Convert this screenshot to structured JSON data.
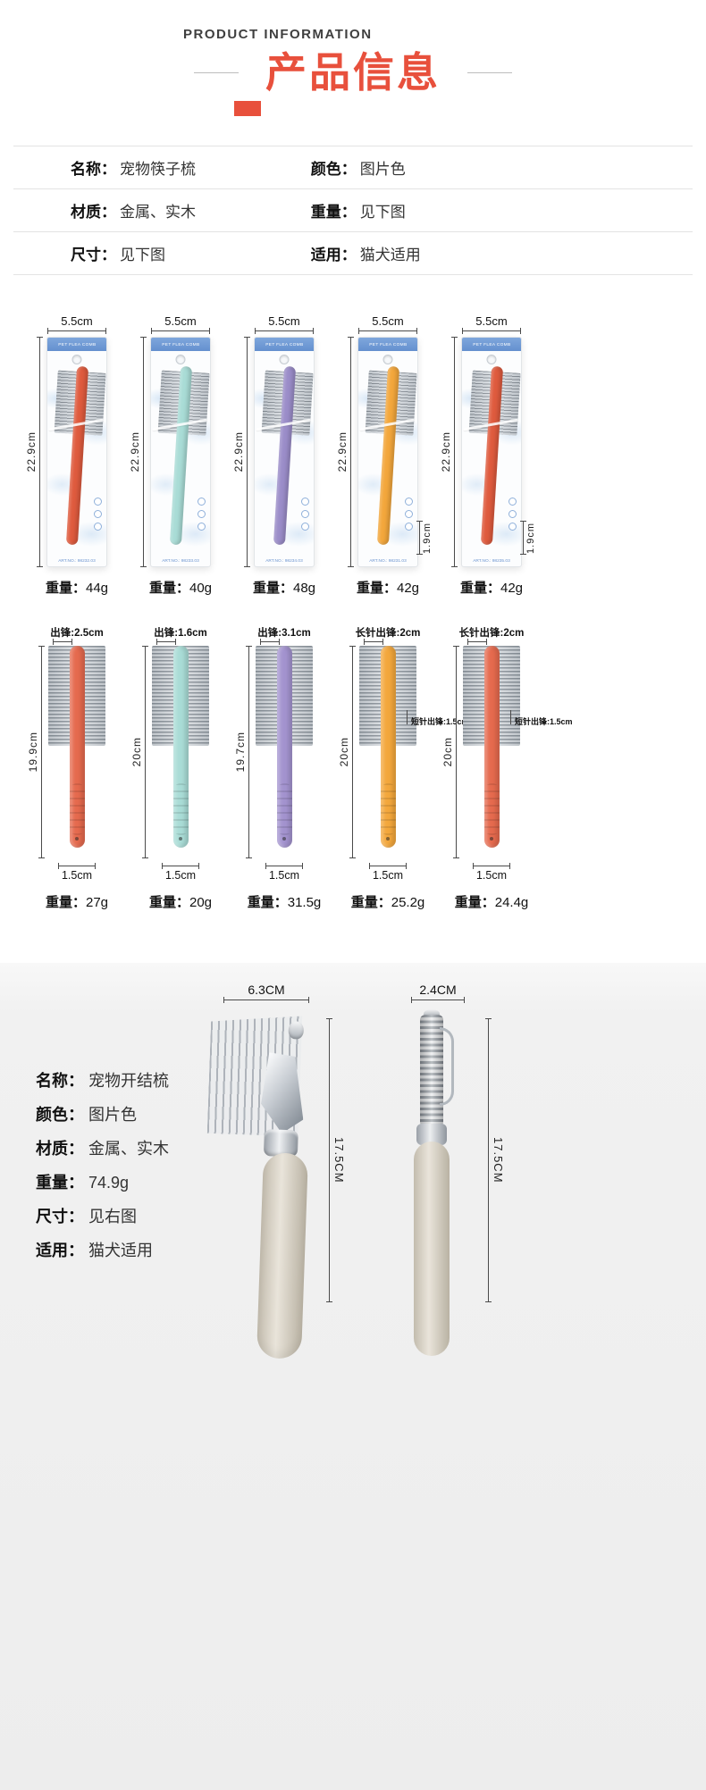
{
  "header": {
    "eyebrow": "PRODUCT INFORMATION",
    "title": "产品信息"
  },
  "colors": {
    "accent": "#e8503c",
    "package_header_blue": "#6d9ad6",
    "tool_handle_beige": "#d9d3c6"
  },
  "spec_table": {
    "rows": [
      {
        "c1_label": "名称：",
        "c1_value": "宠物筷子梳",
        "c2_label": "颜色：",
        "c2_value": "图片色"
      },
      {
        "c1_label": "材质：",
        "c1_value": "金属、实木",
        "c2_label": "重量：",
        "c2_value": "见下图"
      },
      {
        "c1_label": "尺寸：",
        "c1_value": "见下图",
        "c2_label": "适用：",
        "c2_value": "猫犬适用"
      }
    ]
  },
  "packaged_section": {
    "card_title": "PET FLEA COMB",
    "items": [
      {
        "width": "5.5cm",
        "height": "22.9cm",
        "side": "",
        "art_no": "ART.NO.: 98232.03",
        "weight_label": "重量：",
        "weight": "44g",
        "color": "#df5b3e"
      },
      {
        "width": "5.5cm",
        "height": "22.9cm",
        "side": "",
        "art_no": "ART.NO.: 98233.03",
        "weight_label": "重量：",
        "weight": "40g",
        "color": "#a9dcd6"
      },
      {
        "width": "5.5cm",
        "height": "22.9cm",
        "side": "",
        "art_no": "ART.NO.: 98234.03",
        "weight_label": "重量：",
        "weight": "48g",
        "color": "#9b8dc9"
      },
      {
        "width": "5.5cm",
        "height": "22.9cm",
        "side": "1.9cm",
        "art_no": "ART.NO.: 98231.03",
        "weight_label": "重量：",
        "weight": "42g",
        "color": "#f3a73c"
      },
      {
        "width": "5.5cm",
        "height": "22.9cm",
        "side": "1.9cm",
        "art_no": "ART.NO.: 98235.03",
        "weight_label": "重量：",
        "weight": "42g",
        "color": "#df5b3e"
      }
    ]
  },
  "bare_section": {
    "items": [
      {
        "tip": "出锋:2.5cm",
        "short_tip": "",
        "height": "19.9cm",
        "width": "1.5cm",
        "weight_label": "重量：",
        "weight": "27g",
        "color": "#e56a4e"
      },
      {
        "tip": "出锋:1.6cm",
        "short_tip": "",
        "height": "20cm",
        "width": "1.5cm",
        "weight_label": "重量：",
        "weight": "20g",
        "color": "#a9dcd6"
      },
      {
        "tip": "出锋:3.1cm",
        "short_tip": "",
        "height": "19.7cm",
        "width": "1.5cm",
        "weight_label": "重量：",
        "weight": "31.5g",
        "color": "#a393cf"
      },
      {
        "tip": "长针出锋:2cm",
        "short_tip": "短针出锋:1.5cm",
        "height": "20cm",
        "width": "1.5cm",
        "weight_label": "重量：",
        "weight": "25.2g",
        "color": "#f3a73c"
      },
      {
        "tip": "长针出锋:2cm",
        "short_tip": "短针出锋:1.5cm",
        "height": "20cm",
        "width": "1.5cm",
        "weight_label": "重量：",
        "weight": "24.4g",
        "color": "#e56a4e"
      }
    ]
  },
  "bottom_section": {
    "specs": [
      {
        "label": "名称：",
        "value": "宠物开结梳"
      },
      {
        "label": "颜色：",
        "value": "图片色"
      },
      {
        "label": "材质：",
        "value": "金属、实木"
      },
      {
        "label": "重量：",
        "value": "74.9g"
      },
      {
        "label": "尺寸：",
        "value": "见右图"
      },
      {
        "label": "适用：",
        "value": "猫犬适用"
      }
    ],
    "dematting_comb": {
      "width": "6.3CM",
      "height": "17.5CM"
    },
    "grooming_tool": {
      "width": "2.4CM",
      "height": "17.5CM"
    }
  }
}
